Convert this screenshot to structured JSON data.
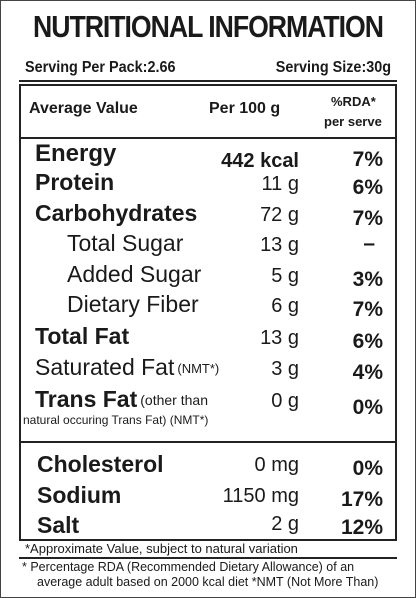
{
  "label": {
    "title": "NUTRITIONAL INFORMATION",
    "serving_per_pack": "Serving Per Pack:2.66",
    "serving_size": "Serving Size:30g",
    "headers": {
      "average_value": "Average Value",
      "per_100g": "Per 100 g",
      "rda": "%RDA*",
      "per_serve": "per serve"
    },
    "rows": [
      {
        "name": "Energy",
        "value": "442 kcal",
        "rda": "7%"
      },
      {
        "name": "Protein",
        "value": "11 g",
        "rda": "6%"
      },
      {
        "name": "Carbohydrates",
        "value": "72 g",
        "rda": "7%"
      },
      {
        "name": "Total Sugar",
        "value": "13 g",
        "rda": "–"
      },
      {
        "name": "Added Sugar",
        "value": "5 g",
        "rda": "3%"
      },
      {
        "name": "Dietary Fiber",
        "value": "6 g",
        "rda": "7%"
      },
      {
        "name": "Total Fat",
        "value": "13 g",
        "rda": "6%"
      },
      {
        "name": "Saturated Fat",
        "qualifier": "(NMT*)",
        "value": "3 g",
        "rda": "4%"
      },
      {
        "name": "Trans Fat",
        "qualifier": "(other than",
        "qualifier_line2": "natural occuring Trans Fat) (NMT*)",
        "value": "0 g",
        "rda": "0%"
      },
      {
        "name": "Cholesterol",
        "value": "0 mg",
        "rda": "0%"
      },
      {
        "name": "Sodium",
        "value": "1150 mg",
        "rda": "17%"
      },
      {
        "name": "Salt",
        "value": "2 g",
        "rda": "12%"
      }
    ],
    "approx_note": "*Approximate Value, subject to natural variation",
    "footnote_line1": "* Percentage RDA (Recommended Dietary Allowance) of an",
    "footnote_line2": "average adult based on 2000 kcal diet *NMT (Not More Than)"
  }
}
